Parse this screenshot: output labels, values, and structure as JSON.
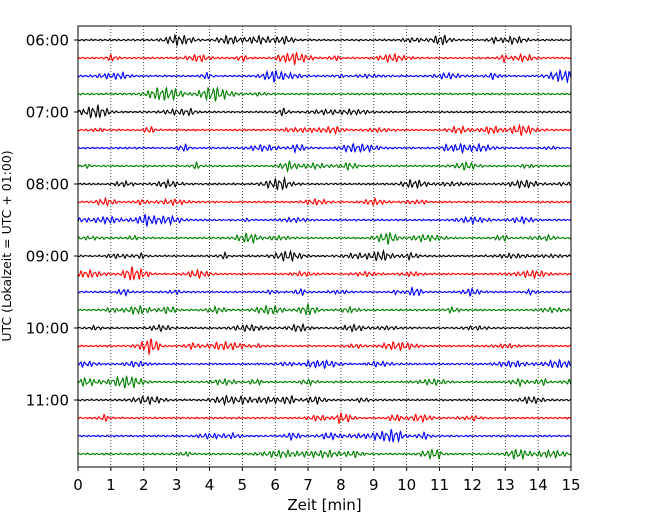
{
  "chart_data": {
    "type": "line",
    "title": "",
    "xlabel": "Zeit  [min]",
    "ylabel": "UTC (Lokalzeit = UTC + 01:00)",
    "xlim": [
      0,
      15
    ],
    "x_ticks": [
      0,
      1,
      2,
      3,
      4,
      5,
      6,
      7,
      8,
      9,
      10,
      11,
      12,
      13,
      14,
      15
    ],
    "y_tick_labels": [
      "06:00",
      "07:00",
      "08:00",
      "09:00",
      "10:00",
      "11:00"
    ],
    "grid": "vertical dotted",
    "trace_interval_min": 15,
    "trace_colors": [
      "#000000",
      "#ff0000",
      "#0000ff",
      "#008000"
    ],
    "trace_start_times": [
      "06:00",
      "06:15",
      "06:30",
      "06:45",
      "07:00",
      "07:15",
      "07:30",
      "07:45",
      "08:00",
      "08:15",
      "08:30",
      "08:45",
      "09:00",
      "09:15",
      "09:30",
      "09:45",
      "10:00",
      "10:15",
      "10:30",
      "10:45",
      "11:00",
      "11:15",
      "11:30",
      "11:45"
    ]
  }
}
